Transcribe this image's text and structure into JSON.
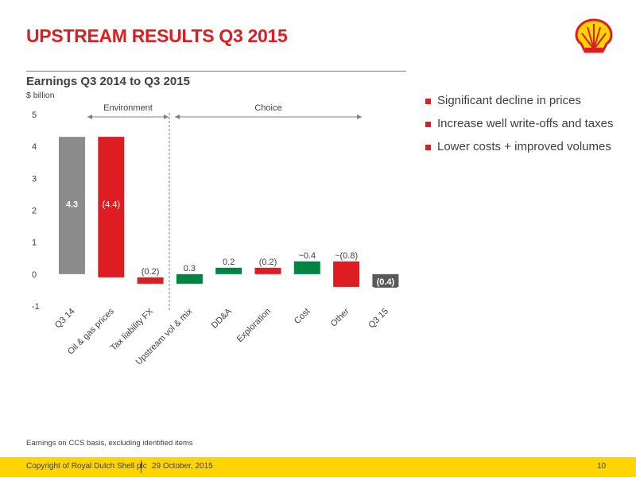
{
  "slide": {
    "title": "UPSTREAM RESULTS Q3 2015",
    "subtitle": "Earnings Q3 2014 to Q3 2015",
    "unit": "$ billion",
    "footnote": "Earnings on CCS basis, excluding identified items",
    "bullets": [
      "Significant decline in prices",
      "Increase well write-offs and taxes",
      "Lower costs + improved volumes"
    ],
    "footer": {
      "copyright": "Copyright of Royal Dutch Shell plc",
      "date": "29  October, 2015",
      "page": "10"
    }
  },
  "chart_data": {
    "type": "bar",
    "subtype": "waterfall",
    "ylim": [
      -1,
      5
    ],
    "yticks": [
      -1,
      0,
      1,
      2,
      3,
      4,
      5
    ],
    "categories": [
      "Q3 14",
      "Oil & gas prices",
      "Tax liability FX",
      "Upstream vol & mix",
      "DD&A",
      "Exploration",
      "Cost",
      "Other",
      "Q3 15"
    ],
    "bars": [
      {
        "label": "Q3 14",
        "kind": "total",
        "start": 0,
        "end": 4.3,
        "data_label": "4.3"
      },
      {
        "label": "Oil & gas prices",
        "kind": "decrease",
        "start": 4.3,
        "end": -0.1,
        "data_label": "(4.4)"
      },
      {
        "label": "Tax liability FX",
        "kind": "decrease",
        "start": -0.1,
        "end": -0.3,
        "data_label": "(0.2)"
      },
      {
        "label": "Upstream vol & mix",
        "kind": "increase",
        "start": -0.3,
        "end": 0.0,
        "data_label": "0.3"
      },
      {
        "label": "DD&A",
        "kind": "increase",
        "start": 0.0,
        "end": 0.2,
        "data_label": "0.2"
      },
      {
        "label": "Exploration",
        "kind": "decrease",
        "start": 0.2,
        "end": 0.0,
        "data_label": "(0.2)"
      },
      {
        "label": "Cost",
        "kind": "increase",
        "start": 0.0,
        "end": 0.4,
        "data_label": "~0.4"
      },
      {
        "label": "Other",
        "kind": "decrease",
        "start": 0.4,
        "end": -0.4,
        "data_label": "~(0.8)"
      },
      {
        "label": "Q3 15",
        "kind": "total_negative",
        "start": 0,
        "end": -0.4,
        "data_label": "(0.4)"
      }
    ],
    "annotations": [
      {
        "text": "Environment",
        "from_category": 0,
        "to_category": 2
      },
      {
        "text": "Choice",
        "from_category": 3,
        "to_category": 7
      }
    ],
    "colors": {
      "total": "#8c8c8c",
      "decrease": "#dd1d21",
      "increase": "#008443",
      "total_negative": "#595959"
    }
  }
}
